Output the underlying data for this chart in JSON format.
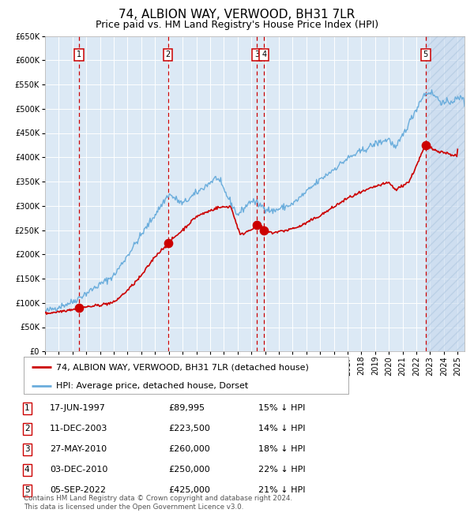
{
  "title": "74, ALBION WAY, VERWOOD, BH31 7LR",
  "subtitle": "Price paid vs. HM Land Registry's House Price Index (HPI)",
  "ylim": [
    0,
    650000
  ],
  "xlim_start": 1995.0,
  "xlim_end": 2025.5,
  "bg_color": "#dce9f5",
  "grid_color": "#ffffff",
  "red_line_color": "#cc0000",
  "blue_line_color": "#6aaddc",
  "sale_points": [
    {
      "year": 1997.46,
      "price": 89995,
      "label": "1"
    },
    {
      "year": 2003.94,
      "price": 223500,
      "label": "2"
    },
    {
      "year": 2010.4,
      "price": 260000,
      "label": "3"
    },
    {
      "year": 2010.92,
      "price": 250000,
      "label": "4"
    },
    {
      "year": 2022.67,
      "price": 425000,
      "label": "5"
    }
  ],
  "vline_color": "#cc0000",
  "legend_items": [
    "74, ALBION WAY, VERWOOD, BH31 7LR (detached house)",
    "HPI: Average price, detached house, Dorset"
  ],
  "table_rows": [
    {
      "num": "1",
      "date": "17-JUN-1997",
      "price": "£89,995",
      "pct": "15% ↓ HPI"
    },
    {
      "num": "2",
      "date": "11-DEC-2003",
      "price": "£223,500",
      "pct": "14% ↓ HPI"
    },
    {
      "num": "3",
      "date": "27-MAY-2010",
      "price": "£260,000",
      "pct": "18% ↓ HPI"
    },
    {
      "num": "4",
      "date": "03-DEC-2010",
      "price": "£250,000",
      "pct": "22% ↓ HPI"
    },
    {
      "num": "5",
      "date": "05-SEP-2022",
      "price": "£425,000",
      "pct": "21% ↓ HPI"
    }
  ],
  "footnote": "Contains HM Land Registry data © Crown copyright and database right 2024.\nThis data is licensed under the Open Government Licence v3.0.",
  "title_fontsize": 11,
  "subtitle_fontsize": 9,
  "axis_tick_fontsize": 7,
  "table_fontsize": 8,
  "legend_fontsize": 8
}
